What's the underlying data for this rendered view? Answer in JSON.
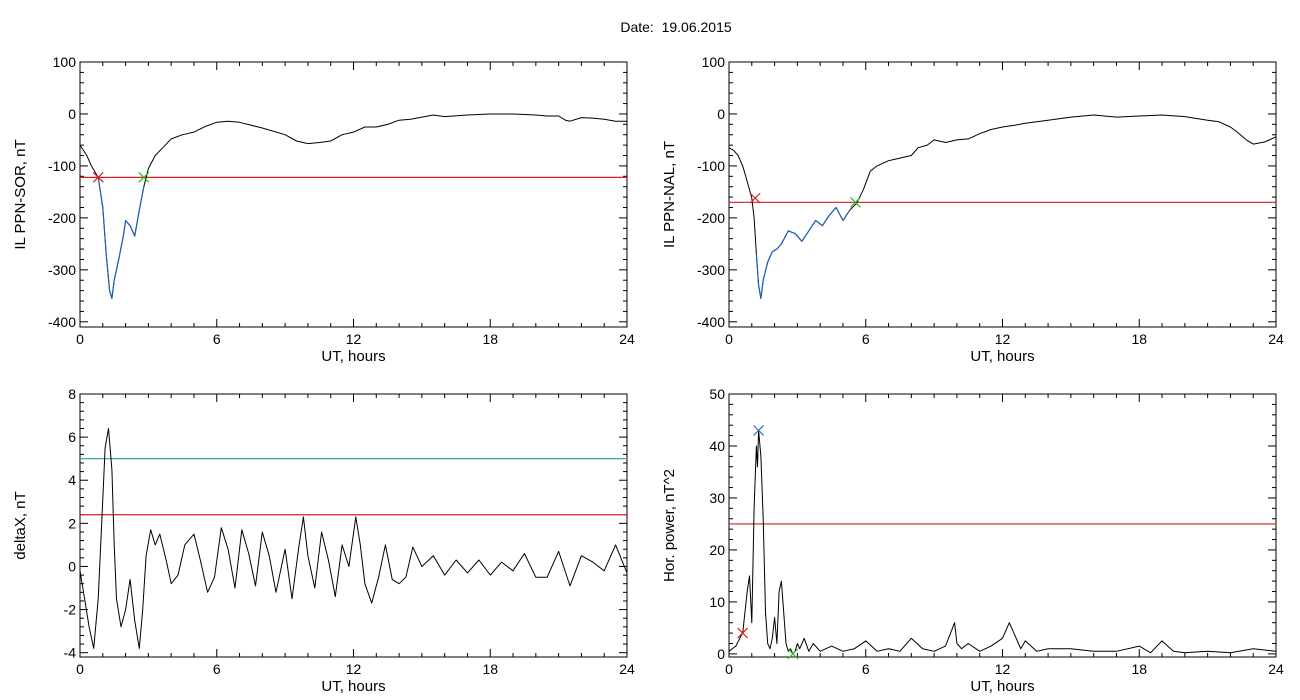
{
  "title": "Date:  19.06.2015",
  "colors": {
    "signal": "#000000",
    "threshold_red": "#d42020",
    "threshold_teal": "#2a9a9a",
    "highlight_blue": "#1f5fbf",
    "marker_red": "#d42020",
    "marker_green": "#2db52d",
    "marker_blue": "#2a6fd6"
  },
  "chart_data": [
    {
      "type": "line",
      "xlabel": "UT, hours",
      "ylabel": "IL PPN-SOR, nT",
      "xlim": [
        0,
        24
      ],
      "ylim": [
        -410,
        100
      ],
      "xticks": [
        "0",
        "6",
        "12",
        "18",
        "24"
      ],
      "yticks": [
        "-400",
        "-300",
        "-200",
        "-100",
        "0",
        "100"
      ],
      "threshold": -122,
      "series": [
        {
          "role": "signal",
          "x": [
            0,
            0.3,
            0.5,
            0.8,
            1.0,
            1.15,
            1.3,
            1.4,
            1.5,
            1.7,
            1.9,
            2.0,
            2.2,
            2.4,
            2.6,
            2.8,
            3.0,
            3.3,
            3.7,
            4.0,
            4.5,
            5.0,
            5.5,
            6.0,
            6.5,
            7.0,
            8.0,
            9.0,
            9.5,
            10.0,
            10.5,
            11.0,
            11.5,
            12.0,
            12.5,
            13.0,
            13.5,
            14.0,
            14.5,
            15.0,
            15.5,
            16.0,
            17.0,
            18.0,
            19.0,
            20.0,
            20.5,
            21.0,
            21.3,
            21.5,
            22.0,
            22.5,
            23.0,
            23.5,
            24.0
          ],
          "y": [
            -60,
            -80,
            -100,
            -122,
            -180,
            -270,
            -340,
            -355,
            -320,
            -280,
            -235,
            -205,
            -215,
            -235,
            -185,
            -140,
            -105,
            -80,
            -62,
            -48,
            -40,
            -35,
            -24,
            -16,
            -14,
            -16,
            -27,
            -40,
            -52,
            -57,
            -55,
            -52,
            -40,
            -35,
            -25,
            -25,
            -20,
            -12,
            -10,
            -6,
            -2,
            -5,
            -2,
            0,
            0,
            -2,
            -4,
            -4,
            -12,
            -14,
            -7,
            -8,
            -10,
            -14,
            -14
          ]
        },
        {
          "role": "highlight",
          "x_range": [
            0.8,
            2.8
          ]
        }
      ],
      "markers": [
        {
          "x": 0.8,
          "y": -122,
          "color": "red"
        },
        {
          "x": 2.8,
          "y": -122,
          "color": "green"
        }
      ]
    },
    {
      "type": "line",
      "xlabel": "UT, hours",
      "ylabel": "IL PPN-NAL, nT",
      "xlim": [
        0,
        24
      ],
      "ylim": [
        -410,
        100
      ],
      "xticks": [
        "0",
        "6",
        "12",
        "18",
        "24"
      ],
      "yticks": [
        "-400",
        "-300",
        "-200",
        "-100",
        "0",
        "100"
      ],
      "threshold": -170,
      "series": [
        {
          "role": "signal",
          "x": [
            0,
            0.2,
            0.4,
            0.6,
            0.8,
            1.0,
            1.1,
            1.2,
            1.3,
            1.4,
            1.5,
            1.7,
            1.9,
            2.1,
            2.3,
            2.6,
            2.9,
            3.2,
            3.5,
            3.8,
            4.1,
            4.4,
            4.7,
            5.0,
            5.3,
            5.6,
            5.9,
            6.2,
            6.5,
            7.0,
            7.5,
            8.0,
            8.3,
            8.7,
            9.0,
            9.5,
            10.0,
            10.5,
            11.0,
            11.5,
            12.0,
            12.5,
            13.0,
            14.0,
            15.0,
            16.0,
            17.0,
            18.0,
            19.0,
            20.0,
            21.0,
            21.5,
            22.0,
            22.3,
            22.7,
            23.0,
            23.5,
            24.0
          ],
          "y": [
            -65,
            -70,
            -80,
            -100,
            -130,
            -162,
            -200,
            -270,
            -330,
            -355,
            -320,
            -285,
            -265,
            -260,
            -250,
            -225,
            -230,
            -245,
            -225,
            -205,
            -215,
            -195,
            -180,
            -205,
            -185,
            -172,
            -145,
            -110,
            -100,
            -90,
            -85,
            -80,
            -65,
            -60,
            -50,
            -55,
            -50,
            -48,
            -38,
            -30,
            -25,
            -22,
            -18,
            -12,
            -6,
            -2,
            -6,
            -4,
            -2,
            -5,
            -12,
            -15,
            -25,
            -35,
            -50,
            -58,
            -54,
            -44
          ]
        },
        {
          "role": "highlight",
          "x_range": [
            1.15,
            5.55
          ]
        }
      ],
      "markers": [
        {
          "x": 1.15,
          "y": -162,
          "color": "red"
        },
        {
          "x": 5.55,
          "y": -170,
          "color": "green"
        }
      ]
    },
    {
      "type": "line",
      "xlabel": "UT, hours",
      "ylabel": "deltaX, nT",
      "xlim": [
        0,
        24
      ],
      "ylim": [
        -4.2,
        8
      ],
      "xticks": [
        "0",
        "6",
        "12",
        "18",
        "24"
      ],
      "yticks": [
        "-4",
        "-2",
        "0",
        "2",
        "4",
        "6",
        "8"
      ],
      "thresholds": [
        {
          "value": 5,
          "color": "teal"
        },
        {
          "value": 2.4,
          "color": "red"
        }
      ],
      "series": [
        {
          "role": "signal",
          "x": [
            0,
            0.2,
            0.4,
            0.6,
            0.8,
            0.95,
            1.1,
            1.25,
            1.4,
            1.5,
            1.6,
            1.8,
            2.0,
            2.2,
            2.4,
            2.6,
            2.75,
            2.9,
            3.1,
            3.3,
            3.5,
            3.8,
            4.0,
            4.3,
            4.6,
            5.0,
            5.3,
            5.6,
            5.9,
            6.2,
            6.5,
            6.8,
            7.1,
            7.4,
            7.7,
            8.0,
            8.3,
            8.6,
            9.0,
            9.3,
            9.6,
            9.8,
            10.0,
            10.3,
            10.6,
            10.9,
            11.2,
            11.5,
            11.8,
            12.1,
            12.3,
            12.5,
            12.8,
            13.1,
            13.4,
            13.7,
            14.0,
            14.3,
            14.6,
            15.0,
            15.5,
            16.0,
            16.5,
            17.0,
            17.5,
            18.0,
            18.5,
            19.0,
            19.5,
            20.0,
            20.5,
            21.0,
            21.5,
            22.0,
            22.5,
            23.0,
            23.5,
            24.0
          ],
          "y": [
            -0.2,
            -1.5,
            -2.8,
            -3.8,
            -1.5,
            2.0,
            5.5,
            6.4,
            4.5,
            1.0,
            -1.5,
            -2.8,
            -2.0,
            -0.6,
            -2.5,
            -3.8,
            -2.0,
            0.5,
            1.7,
            1.0,
            1.5,
            0.2,
            -0.8,
            -0.4,
            1.0,
            1.5,
            0.2,
            -1.2,
            -0.5,
            1.8,
            0.8,
            -1.0,
            1.7,
            0.6,
            -0.9,
            1.6,
            0.5,
            -1.2,
            0.8,
            -1.5,
            0.9,
            2.3,
            0.5,
            -1.0,
            1.6,
            0.3,
            -1.4,
            1.0,
            0.0,
            2.3,
            1.0,
            -0.8,
            -1.7,
            -0.5,
            1.0,
            -0.6,
            -0.8,
            -0.5,
            0.9,
            0.0,
            0.5,
            -0.4,
            0.3,
            -0.3,
            0.3,
            -0.4,
            0.2,
            -0.2,
            0.6,
            -0.5,
            -0.5,
            0.7,
            -0.9,
            0.5,
            0.2,
            -0.2,
            1.0,
            -0.3
          ]
        }
      ]
    },
    {
      "type": "line",
      "xlabel": "UT, hours",
      "ylabel": "Hor. power, nT^2",
      "xlim": [
        0,
        24
      ],
      "ylim": [
        -0.6,
        50
      ],
      "xticks": [
        "0",
        "6",
        "12",
        "18",
        "24"
      ],
      "yticks": [
        "0",
        "10",
        "20",
        "30",
        "40",
        "50"
      ],
      "threshold": 25,
      "series": [
        {
          "role": "signal",
          "x": [
            0,
            0.3,
            0.5,
            0.6,
            0.8,
            0.9,
            1.0,
            1.1,
            1.2,
            1.25,
            1.3,
            1.4,
            1.5,
            1.6,
            1.7,
            1.8,
            1.9,
            2.0,
            2.1,
            2.2,
            2.3,
            2.4,
            2.5,
            2.6,
            2.7,
            2.8,
            2.9,
            3.0,
            3.1,
            3.3,
            3.5,
            3.7,
            4.0,
            4.5,
            5.0,
            5.5,
            6.0,
            6.5,
            7.0,
            7.5,
            8.0,
            8.5,
            9.0,
            9.5,
            9.9,
            10.0,
            10.2,
            10.5,
            11.0,
            11.5,
            12.0,
            12.3,
            12.5,
            12.8,
            13.0,
            13.5,
            14.0,
            15.0,
            16.0,
            17.0,
            18.0,
            18.5,
            19.0,
            19.5,
            20.0,
            21.0,
            22.0,
            23.0,
            24.0
          ],
          "y": [
            0.5,
            1.5,
            3.2,
            4.0,
            12.0,
            15.0,
            6.0,
            28.0,
            40.0,
            36.0,
            43.0,
            38.0,
            26.0,
            8.0,
            2.0,
            1.0,
            3.0,
            7.0,
            2.0,
            12.0,
            14.0,
            8.0,
            2.0,
            0.5,
            1.0,
            0.0,
            0.5,
            2.0,
            1.0,
            3.0,
            0.5,
            2.0,
            0.5,
            1.5,
            0.5,
            1.0,
            2.5,
            0.5,
            1.0,
            0.5,
            3.0,
            1.0,
            0.5,
            1.5,
            6.0,
            2.0,
            1.0,
            2.0,
            0.5,
            1.5,
            3.0,
            6.0,
            4.0,
            1.0,
            2.5,
            0.5,
            1.0,
            1.0,
            0.5,
            0.5,
            1.5,
            0.2,
            2.5,
            0.5,
            0.2,
            0.5,
            0.2,
            1.0,
            0.5
          ]
        }
      ],
      "markers": [
        {
          "x": 0.6,
          "y": 4.0,
          "color": "red"
        },
        {
          "x": 1.3,
          "y": 43.0,
          "color": "blue"
        },
        {
          "x": 2.8,
          "y": 0.0,
          "color": "green"
        }
      ]
    }
  ]
}
